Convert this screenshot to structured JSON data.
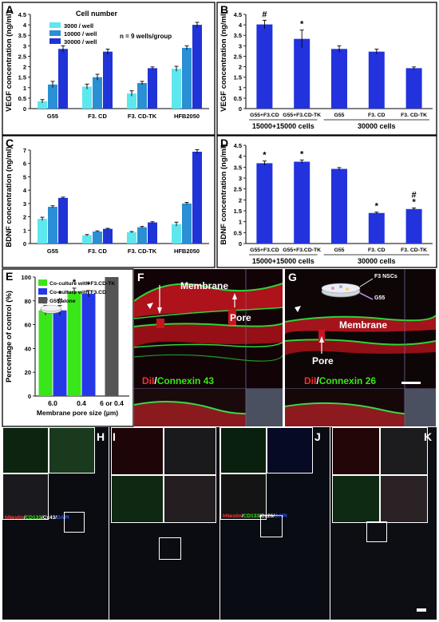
{
  "panel_labels": [
    "A",
    "B",
    "C",
    "D",
    "E",
    "F",
    "G",
    "H",
    "I",
    "J",
    "K"
  ],
  "colors": {
    "c3000": "#5ee7ee",
    "c10000": "#2a8fd4",
    "c30000": "#1f33d6",
    "bar_single": "#2233dd",
    "green": "#39e619",
    "blue": "#2438e8",
    "gray": "#555555"
  },
  "chart_data": [
    {
      "id": "A",
      "type": "bar",
      "ylabel": "VEGF concentration (ng/ml)",
      "ylim": [
        0,
        4.5
      ],
      "yticks": [
        "0",
        "0.5",
        "1",
        "1.5",
        "2",
        "2.5",
        "3",
        "3.5",
        "4",
        "4.5"
      ],
      "categories": [
        "G55",
        "F3. CD",
        "F3. CD-TK",
        "HFB2050"
      ],
      "legend_title": "Cell number",
      "annotation": "n = 9 wells/group",
      "series": [
        {
          "name": "3000 / well",
          "values": [
            0.35,
            1.05,
            0.72,
            1.9
          ]
        },
        {
          "name": "10000 / well",
          "values": [
            1.15,
            1.5,
            1.22,
            2.9
          ]
        },
        {
          "name": "30000 / well",
          "values": [
            2.85,
            2.72,
            1.93,
            4.0
          ]
        }
      ],
      "errors": [
        [
          0.08,
          0.12,
          0.13,
          0.12
        ],
        [
          0.15,
          0.14,
          0.08,
          0.1
        ],
        [
          0.15,
          0.12,
          0.06,
          0.12
        ]
      ]
    },
    {
      "id": "B",
      "type": "bar",
      "ylabel": "VEGF concentration (ng/ml)",
      "ylim": [
        0,
        4.5
      ],
      "yticks": [
        "0",
        "0.5",
        "1",
        "1.5",
        "2",
        "2.5",
        "3",
        "3.5",
        "4",
        "4.5"
      ],
      "categories": [
        "G55+F3.CD",
        "G55+F3.CD-TK",
        "G55",
        "F3. CD",
        "F3. CD-TK"
      ],
      "values": [
        4.02,
        3.33,
        2.85,
        2.72,
        1.93
      ],
      "errors": [
        0.2,
        0.42,
        0.15,
        0.12,
        0.06
      ],
      "marks": [
        "#",
        "*",
        "",
        "",
        ""
      ],
      "groups": [
        "15000+15000 cells",
        "30000 cells"
      ]
    },
    {
      "id": "C",
      "type": "bar",
      "ylabel": "BDNF concentration (ng/ml)",
      "ylim": [
        0,
        7
      ],
      "yticks": [
        "0",
        "1",
        "2",
        "3",
        "4",
        "5",
        "6",
        "7"
      ],
      "categories": [
        "G55",
        "F3. CD",
        "F3. CD-TK",
        "HFB2050"
      ],
      "series": [
        {
          "name": "3000 / well",
          "values": [
            1.85,
            0.62,
            0.85,
            1.45
          ]
        },
        {
          "name": "10000 / well",
          "values": [
            2.75,
            0.9,
            1.22,
            3.0
          ]
        },
        {
          "name": "30000 / well",
          "values": [
            3.42,
            1.1,
            1.58,
            6.88
          ]
        }
      ],
      "errors": [
        [
          0.12,
          0.05,
          0.05,
          0.15
        ],
        [
          0.08,
          0.05,
          0.06,
          0.08
        ],
        [
          0.06,
          0.04,
          0.05,
          0.15
        ]
      ]
    },
    {
      "id": "D",
      "type": "bar",
      "ylabel": "BDNF concentration (ng/ml)",
      "ylim": [
        0,
        4.5
      ],
      "yticks": [
        "0",
        "0.5",
        "1",
        "1.5",
        "2",
        "2.5",
        "3",
        "3.5",
        "4",
        "4.5"
      ],
      "categories": [
        "G55+F3.CD",
        "G55+F3.CD-TK",
        "G55",
        "F3. CD",
        "F3. CD-TK"
      ],
      "values": [
        3.68,
        3.75,
        3.42,
        1.4,
        1.58
      ],
      "errors": [
        0.1,
        0.08,
        0.06,
        0.04,
        0.05
      ],
      "marks": [
        "*",
        "*",
        "",
        "*",
        "#\n*"
      ],
      "groups": [
        "15000+15000 cells",
        "30000 cells"
      ]
    },
    {
      "id": "E",
      "type": "bar",
      "ylabel": "Percentage of control (%)",
      "xlabel": "Membrane pore size (µm)",
      "ylim": [
        0,
        100
      ],
      "yticks": [
        "0",
        "20",
        "40",
        "60",
        "80",
        "100"
      ],
      "categories": [
        "6.0",
        "0.4",
        "6 or 0.4"
      ],
      "series": [
        {
          "name": "Co-culture with F3.CD-TK",
          "values": [
            72,
            88,
            null
          ]
        },
        {
          "name": "Co-culture with F3.CD",
          "values": [
            72,
            86,
            null
          ]
        },
        {
          "name": "G55 alone",
          "values": [
            null,
            null,
            100
          ]
        }
      ],
      "marks": [
        [
          "*\n#",
          "*",
          ""
        ],
        [
          "*\n#",
          "*",
          ""
        ],
        [
          "",
          "",
          ""
        ]
      ]
    }
  ],
  "image_panels": {
    "F": {
      "membrane": "Membrane",
      "pore": "Pore",
      "stain_red": "DiI",
      "slash": "/",
      "stain_green": "Connexin 43"
    },
    "G": {
      "membrane": "Membrane",
      "pore": "Pore",
      "f3": "F3 NSCs",
      "g55": "G55",
      "stain_red": "DiI",
      "slash": "/",
      "stain_green": "Connexin 26"
    },
    "H": {
      "legend": [
        "hNestin",
        "/",
        "CD133",
        "/",
        "Cx43",
        "/",
        "DAPI"
      ]
    },
    "J": {
      "legend": [
        "hNestin",
        "/",
        "CD133",
        "/",
        "Cx26",
        "/",
        "DAPI"
      ]
    }
  }
}
